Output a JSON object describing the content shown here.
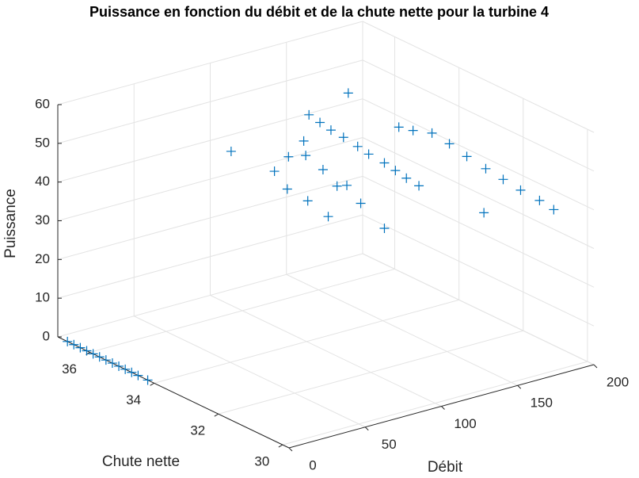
{
  "chart_data": {
    "type": "scatter3",
    "title": "Puissance en fonction du débit et de la chute nette pour la turbine 4",
    "x_label": "Débit",
    "y_label": "Chute nette",
    "z_label": "Puissance",
    "xlim": [
      0,
      200
    ],
    "xticks": [
      0,
      50,
      100,
      150,
      200
    ],
    "ylim": [
      29.8,
      37
    ],
    "yticks": [
      30,
      32,
      34,
      36
    ],
    "zlim": [
      0,
      60
    ],
    "zticks": [
      0,
      10,
      20,
      30,
      40,
      50,
      60
    ],
    "grid": true,
    "marker": "+",
    "series": [
      {
        "color": "#0072BD",
        "x": [
          0,
          0,
          0,
          0,
          0,
          0,
          0,
          0,
          0,
          0,
          0,
          0,
          0,
          110,
          113,
          116,
          120,
          123,
          126,
          130,
          133,
          136,
          140,
          150,
          153,
          157,
          160,
          163,
          167,
          170,
          173,
          177,
          180,
          100,
          105,
          110,
          115,
          120,
          125,
          130,
          105,
          110,
          118,
          100,
          115,
          140,
          80,
          170
        ],
        "y": [
          36.7,
          36.5,
          36.3,
          36.1,
          35.9,
          35.7,
          35.5,
          35.3,
          35.1,
          34.9,
          34.7,
          34.5,
          34.2,
          34.4,
          34.2,
          34.0,
          33.8,
          33.5,
          33.3,
          33.0,
          32.8,
          32.6,
          32.4,
          33.5,
          33.2,
          32.8,
          32.4,
          32.0,
          31.6,
          31.2,
          30.8,
          30.4,
          30.1,
          35.0,
          34.8,
          34.5,
          34.2,
          34.0,
          33.5,
          33.0,
          34.2,
          33.8,
          33.6,
          34.6,
          34.8,
          34.6,
          35.4,
          31.8
        ],
        "z": [
          0,
          0,
          0,
          0,
          0,
          0,
          0,
          0,
          0,
          0,
          0,
          0,
          0,
          55.9,
          54.4,
          52.9,
          51.4,
          49.9,
          48.4,
          46.9,
          45.4,
          43.9,
          42.3,
          52,
          52,
          52.5,
          51,
          49,
          47,
          45.5,
          44,
          42.5,
          41,
          40,
          44,
          45,
          42,
          38,
          35,
          30,
          35,
          32,
          40,
          37,
          47,
          57.5,
          45.7,
          34.5
        ]
      }
    ]
  }
}
